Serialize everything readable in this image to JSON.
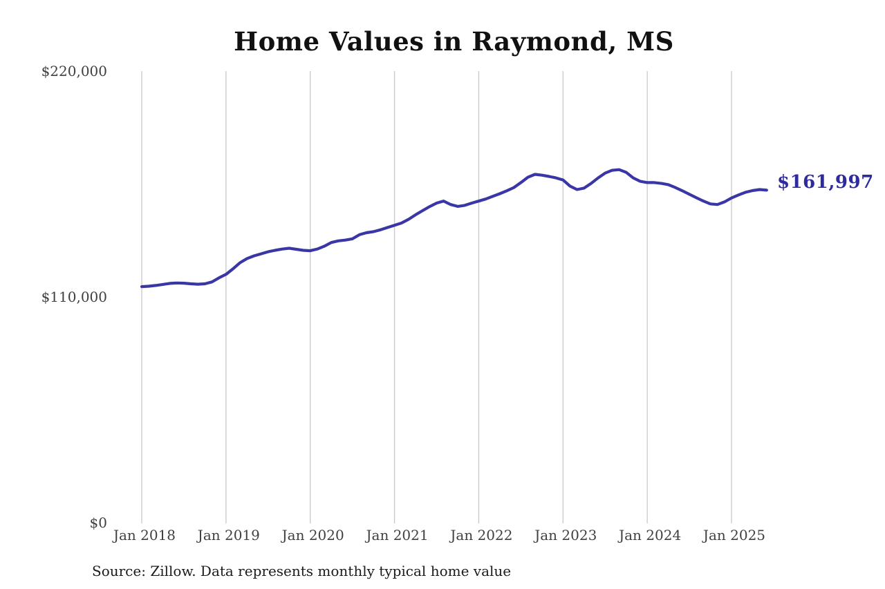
{
  "chart": {
    "title": "Home Values in Raymond, MS",
    "end_label": "$161,997",
    "source_note": "Source: Zillow. Data represents monthly typical home value"
  },
  "colors": {
    "line": "#3b36a5",
    "end_label_text": "#2e2b9e",
    "grid": "#c8c8c8",
    "axis_text": "#3f3f3f",
    "title_text": "#111111",
    "background": "#ffffff"
  },
  "chart_data": {
    "type": "line",
    "title": "Home Values in Raymond, MS",
    "xlabel": "",
    "ylabel": "",
    "ylim": [
      0,
      220000
    ],
    "grid": "vertical-only",
    "legend": "none",
    "y_ticks": [
      {
        "value": 0,
        "label": "$0"
      },
      {
        "value": 110000,
        "label": "$110,000"
      },
      {
        "value": 220000,
        "label": "$220,000"
      }
    ],
    "x_tick_labels": [
      "Jan 2018",
      "Jan 2019",
      "Jan 2020",
      "Jan 2021",
      "Jan 2022",
      "Jan 2023",
      "Jan 2024",
      "Jan 2025"
    ],
    "x_start": "2018-01",
    "x_interval": "1 month",
    "last_point_label": 161997,
    "series": [
      {
        "name": "Monthly typical home value",
        "values": [
          115000,
          115200,
          115600,
          116100,
          116600,
          116800,
          116700,
          116400,
          116200,
          116400,
          117300,
          119300,
          121000,
          123700,
          126700,
          128700,
          130000,
          131000,
          132000,
          132700,
          133300,
          133700,
          133200,
          132700,
          132500,
          133300,
          134700,
          136500,
          137300,
          137700,
          138300,
          140300,
          141300,
          141800,
          142700,
          143800,
          144900,
          146000,
          147800,
          150000,
          152000,
          154000,
          155700,
          156700,
          155000,
          154100,
          154600,
          155700,
          156700,
          157700,
          159000,
          160300,
          161700,
          163300,
          165700,
          168300,
          169700,
          169300,
          168700,
          168000,
          167000,
          164000,
          162300,
          163000,
          165300,
          168000,
          170300,
          171700,
          172000,
          170700,
          168000,
          166300,
          165700,
          165700,
          165300,
          164700,
          163300,
          161700,
          160000,
          158300,
          156700,
          155300,
          155000,
          156300,
          158200,
          159700,
          161000,
          161800,
          162300,
          161997
        ]
      }
    ]
  }
}
